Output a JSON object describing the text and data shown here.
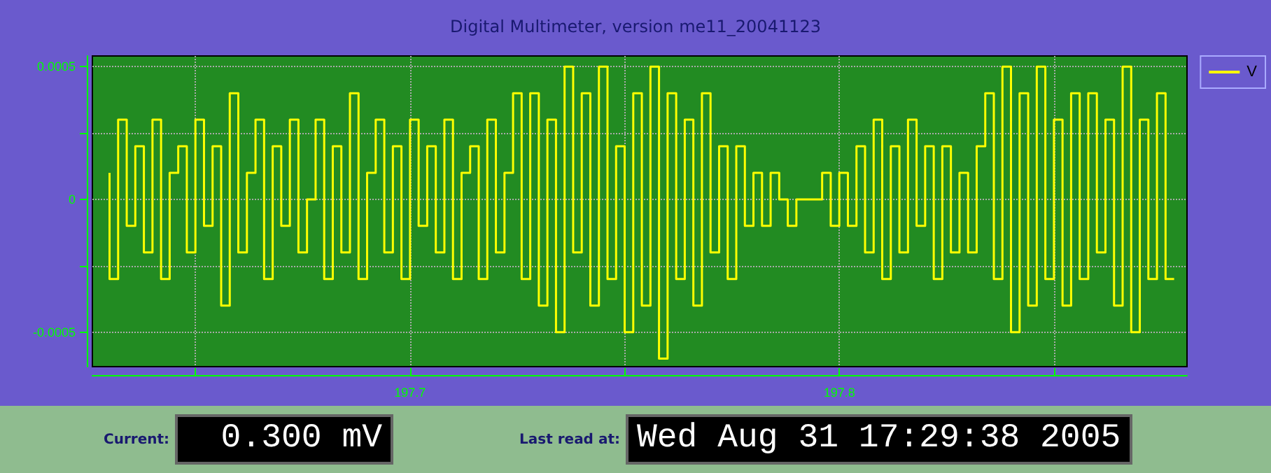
{
  "chart_data": {
    "type": "step",
    "title": "Digital Multimeter, version me11_20041123",
    "x": [
      197.63,
      197.632,
      197.634,
      197.636,
      197.638,
      197.64,
      197.642,
      197.644,
      197.646,
      197.648,
      197.65,
      197.652,
      197.654,
      197.656,
      197.658,
      197.66,
      197.662,
      197.664,
      197.666,
      197.668,
      197.67,
      197.672,
      197.674,
      197.676,
      197.678,
      197.68,
      197.682,
      197.684,
      197.686,
      197.688,
      197.69,
      197.692,
      197.694,
      197.696,
      197.698,
      197.7,
      197.702,
      197.704,
      197.706,
      197.708,
      197.71,
      197.712,
      197.714,
      197.716,
      197.718,
      197.72,
      197.722,
      197.724,
      197.726,
      197.728,
      197.73,
      197.732,
      197.734,
      197.736,
      197.738,
      197.74,
      197.742,
      197.744,
      197.746,
      197.748,
      197.75,
      197.752,
      197.754,
      197.756,
      197.758,
      197.76,
      197.762,
      197.764,
      197.766,
      197.768,
      197.77,
      197.772,
      197.774,
      197.776,
      197.778,
      197.78,
      197.782,
      197.784,
      197.786,
      197.788,
      197.79,
      197.792,
      197.794,
      197.796,
      197.798,
      197.8,
      197.802,
      197.804,
      197.806,
      197.808,
      197.81,
      197.812,
      197.814,
      197.816,
      197.818,
      197.82,
      197.822,
      197.824,
      197.826,
      197.828,
      197.83,
      197.832,
      197.834,
      197.836,
      197.838,
      197.84,
      197.842,
      197.844,
      197.846,
      197.848,
      197.85,
      197.852,
      197.854,
      197.856,
      197.858,
      197.86,
      197.862,
      197.864,
      197.866,
      197.868,
      197.87,
      197.872,
      197.874,
      197.876,
      197.878
    ],
    "series": [
      {
        "name": "V",
        "color": "#ffff00",
        "values": [
          0.0001,
          -0.0003,
          0.0003,
          -0.0001,
          0.0002,
          -0.0002,
          0.0003,
          -0.0003,
          0.0001,
          0.0002,
          -0.0002,
          0.0003,
          -0.0001,
          0.0002,
          -0.0004,
          0.0004,
          -0.0002,
          0.0001,
          0.0003,
          -0.0003,
          0.0002,
          -0.0001,
          0.0003,
          -0.0002,
          0,
          0.0003,
          -0.0003,
          0.0002,
          -0.0002,
          0.0004,
          -0.0003,
          0.0001,
          0.0003,
          -0.0002,
          0.0002,
          -0.0003,
          0.0003,
          -0.0001,
          0.0002,
          -0.0002,
          0.0003,
          -0.0003,
          0.0001,
          0.0002,
          -0.0003,
          0.0003,
          -0.0002,
          0.0001,
          0.0004,
          -0.0003,
          0.0004,
          -0.0004,
          0.0003,
          -0.0005,
          0.0005,
          -0.0002,
          0.0004,
          -0.0004,
          0.0005,
          -0.0003,
          0.0002,
          -0.0005,
          0.0004,
          -0.0004,
          0.0005,
          -0.0006,
          0.0004,
          -0.0003,
          0.0003,
          -0.0004,
          0.0004,
          -0.0002,
          0.0002,
          -0.0003,
          0.0002,
          -0.0001,
          0.0001,
          -0.0001,
          0.0001,
          0,
          -0.0001,
          0,
          0,
          0,
          0.0001,
          -0.0001,
          0.0001,
          -0.0001,
          0.0002,
          -0.0002,
          0.0003,
          -0.0003,
          0.0002,
          -0.0002,
          0.0003,
          -0.0001,
          0.0002,
          -0.0003,
          0.0002,
          -0.0002,
          0.0001,
          -0.0002,
          0.0002,
          0.0004,
          -0.0003,
          0.0005,
          -0.0005,
          0.0004,
          -0.0004,
          0.0005,
          -0.0003,
          0.0003,
          -0.0004,
          0.0004,
          -0.0003,
          0.0004,
          -0.0002,
          0.0003,
          -0.0004,
          0.0005,
          -0.0005,
          0.0003,
          -0.0003,
          0.0004,
          -0.0003
        ]
      }
    ],
    "xlim": [
      197.626,
      197.881
    ],
    "xticks": [
      {
        "value": 197.65,
        "label": null
      },
      197.7,
      {
        "value": 197.75,
        "label": null
      },
      197.8,
      {
        "value": 197.85,
        "label": null
      }
    ],
    "ylim": [
      -0.00063,
      0.00054
    ],
    "yticks": [
      -0.0005,
      {
        "value": -0.00025,
        "label": null
      },
      0,
      {
        "value": 0.00025,
        "label": null
      },
      0.0005
    ],
    "grid": true,
    "line_style": "solid",
    "marker": "none",
    "legend": "top right",
    "annotations": [
      "Current:",
      "0.300 mV",
      "Last read at:",
      "Wed Aug 31 17:29:38 2005"
    ]
  }
}
